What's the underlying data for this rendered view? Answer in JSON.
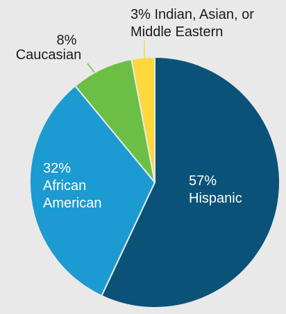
{
  "chart_data": {
    "type": "pie",
    "slices": [
      {
        "value": 57,
        "percent_label": "57%",
        "line1": "Hispanic",
        "line2": "",
        "color": "#0a5278",
        "text_color": "#ffffff"
      },
      {
        "value": 32,
        "percent_label": "32%",
        "line1": "African",
        "line2": "American",
        "color": "#1b9bd1",
        "text_color": "#ffffff"
      },
      {
        "value": 8,
        "percent_label": "8%",
        "line1": "Caucasian",
        "line2": "",
        "color": "#6cbf45",
        "text_color": "#1a1a1a"
      },
      {
        "value": 3,
        "percent_label": "3% Indian, Asian, or",
        "line1": "Middle Eastern",
        "line2": "",
        "color": "#fed83c",
        "text_color": "#1a1a1a"
      }
    ],
    "start_angle_deg": 0,
    "direction": "clockwise",
    "legend": "none"
  }
}
